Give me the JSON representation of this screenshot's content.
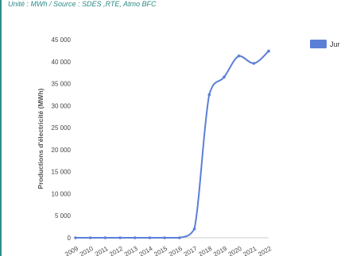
{
  "caption": "Unité : MWh / Source : SDES ,RTE, Atmo BFC",
  "colors": {
    "accent": "#5b7fd6",
    "rule": "#2f8f8a",
    "caption": "#2a8a86",
    "tick": "#444444",
    "grid": "#dcdcdc"
  },
  "chart_data": {
    "type": "line",
    "title": "",
    "xlabel": "",
    "ylabel": "Productions d'électricité (MWh)",
    "x": [
      "2009",
      "2010",
      "2011",
      "2012",
      "2013",
      "2014",
      "2015",
      "2016",
      "2017",
      "2018",
      "2019",
      "2020",
      "2021",
      "2022"
    ],
    "ylim": [
      0,
      45000
    ],
    "yticks": [
      0,
      5000,
      10000,
      15000,
      20000,
      25000,
      30000,
      35000,
      40000,
      45000
    ],
    "ytick_labels": [
      "0",
      "5 000",
      "10 000",
      "15 000",
      "20 000",
      "25 000",
      "30 000",
      "35 000",
      "40 000",
      "45 000"
    ],
    "grid": false,
    "legend_position": "top-right",
    "series": [
      {
        "name": "Jur",
        "values": [
          0,
          0,
          0,
          0,
          0,
          0,
          0,
          0,
          2000,
          32500,
          36500,
          41300,
          39600,
          42400
        ]
      }
    ]
  }
}
